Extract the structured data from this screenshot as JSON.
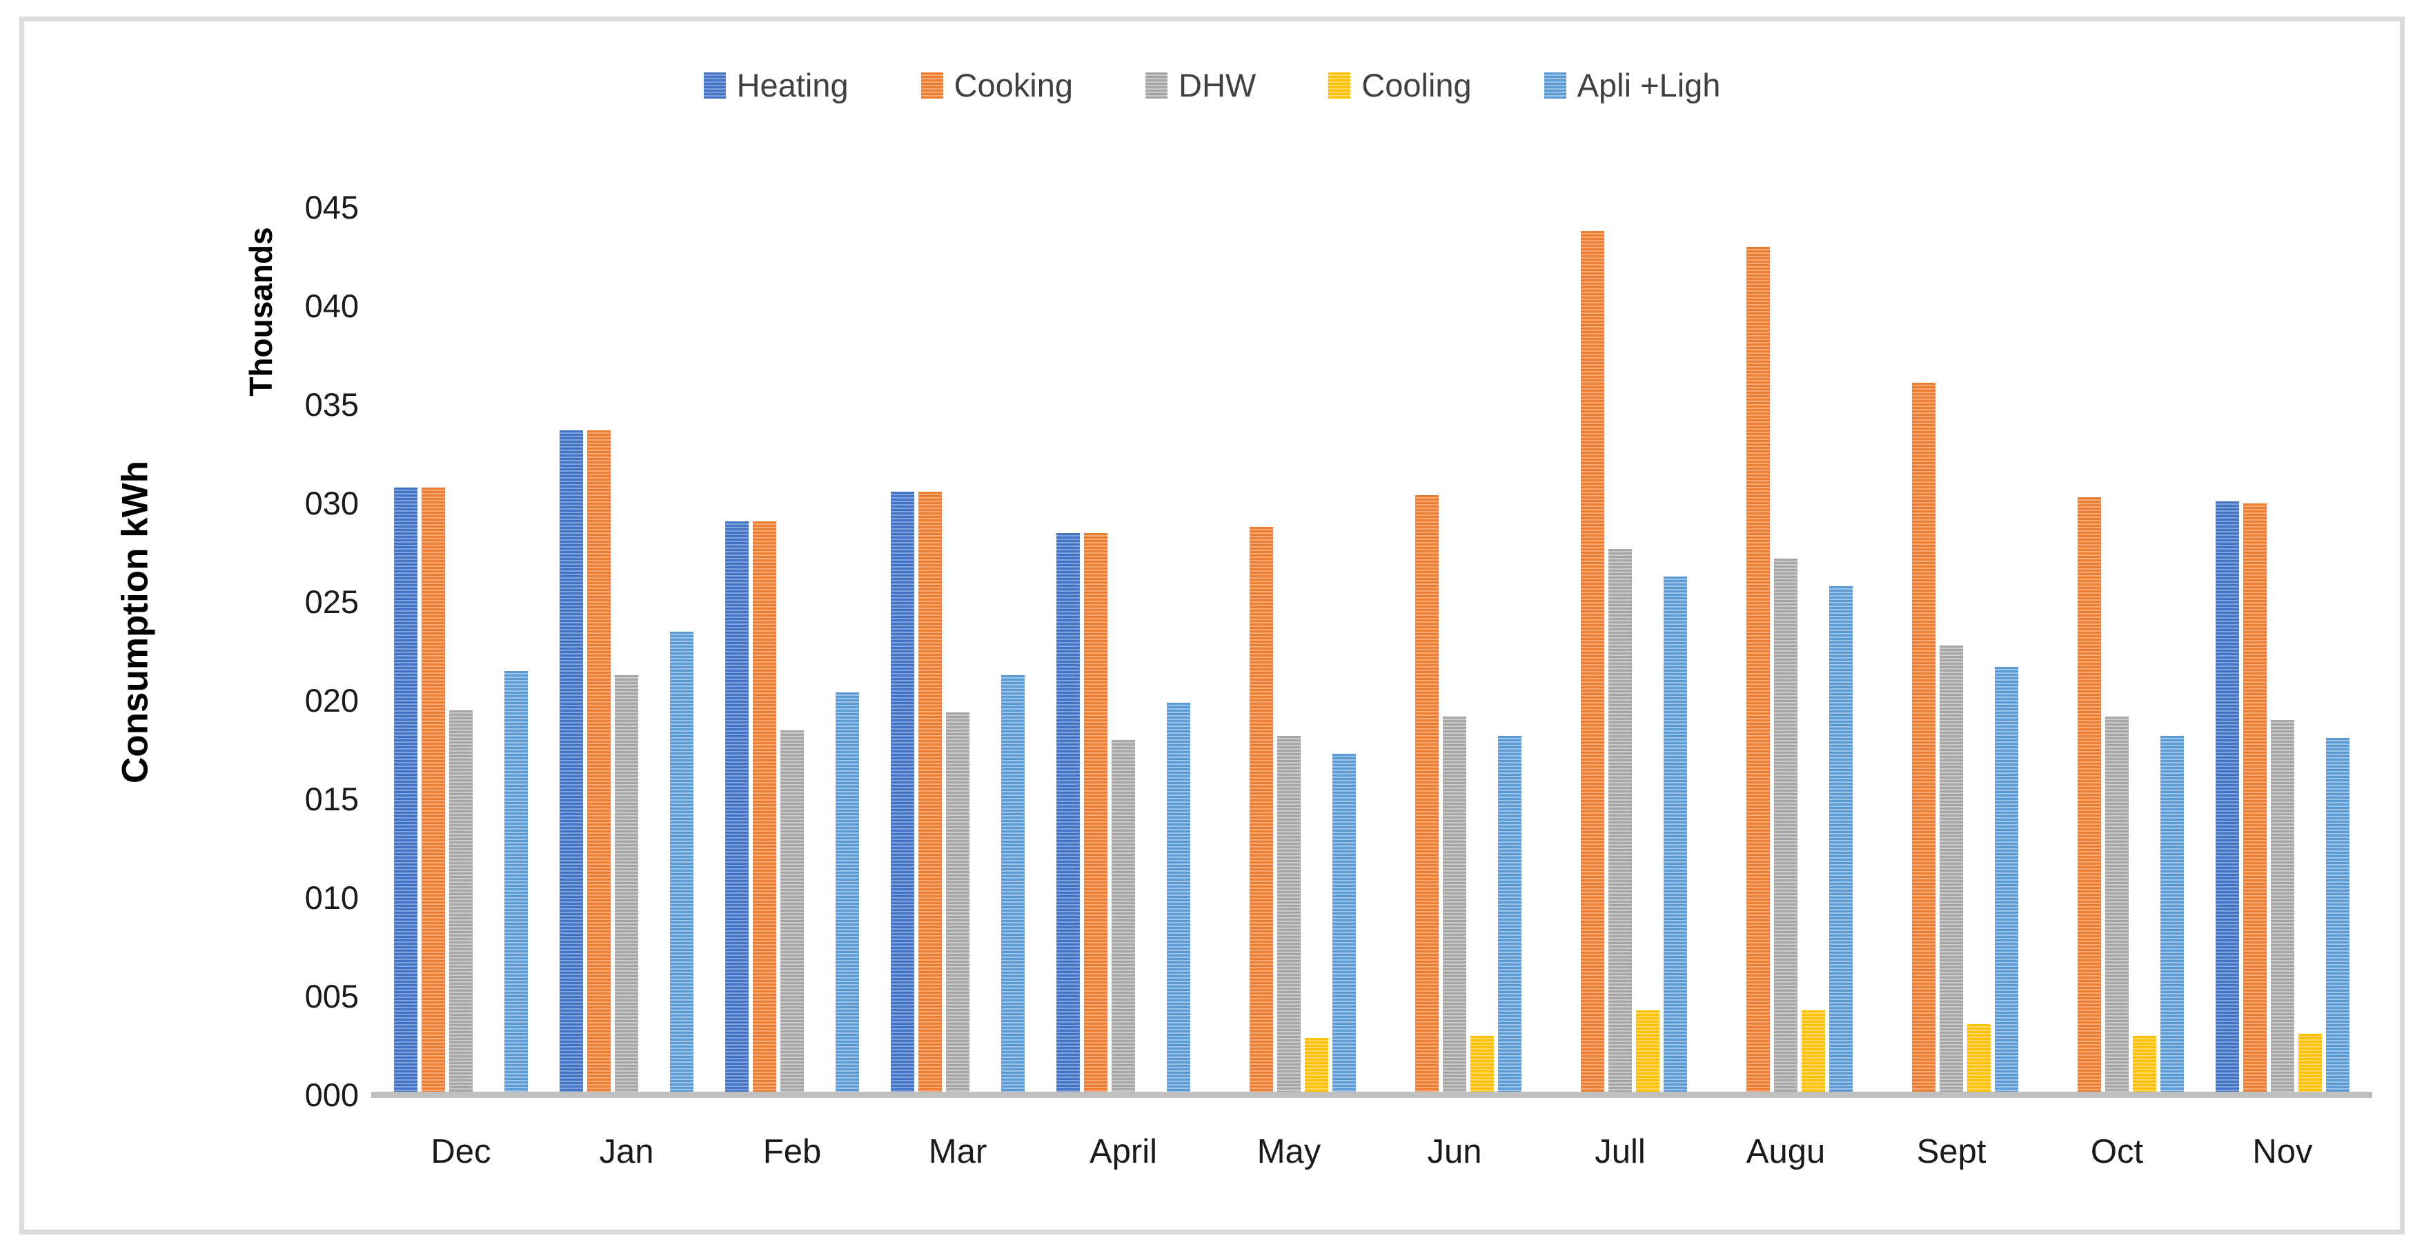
{
  "frame": {
    "border_color": "#dcdcdc",
    "background": "#ffffff"
  },
  "axis_titles": {
    "primary": "Consumption kWh",
    "secondary": "Thousands"
  },
  "chart_data": {
    "type": "bar",
    "title": "",
    "categories": [
      "Dec",
      "Jan",
      "Feb",
      "Mar",
      "April",
      "May",
      "Jun",
      "Jull",
      "Augu",
      "Sept",
      "Oct",
      "Nov"
    ],
    "series": [
      {
        "name": "Heating",
        "color": "#4472C4",
        "stripe_color": "#7FA3DC",
        "values": [
          30.7,
          33.6,
          29.0,
          30.5,
          28.4,
          0,
          0,
          0,
          0,
          0,
          0,
          30.0
        ]
      },
      {
        "name": "Cooking",
        "color": "#ED7D31",
        "stripe_color": "#F4A877",
        "values": [
          30.7,
          33.6,
          29.0,
          30.5,
          28.4,
          28.7,
          30.3,
          43.7,
          42.9,
          36.0,
          30.2,
          29.9
        ]
      },
      {
        "name": "DHW",
        "color": "#A6A6A6",
        "stripe_color": "#C9C9C9",
        "values": [
          19.4,
          21.2,
          18.4,
          19.3,
          17.9,
          18.1,
          19.1,
          27.6,
          27.1,
          22.7,
          19.1,
          18.9
        ]
      },
      {
        "name": "Cooling",
        "color": "#FFC000",
        "stripe_color": "#FFD966",
        "values": [
          0,
          0,
          0,
          0,
          0,
          2.8,
          2.9,
          4.2,
          4.2,
          3.5,
          2.9,
          3.0
        ]
      },
      {
        "name": "Apli +Ligh",
        "color": "#5B9BD5",
        "stripe_color": "#9DC3E6",
        "values": [
          21.4,
          23.4,
          20.3,
          21.2,
          19.8,
          17.2,
          18.1,
          26.2,
          25.7,
          21.6,
          18.1,
          18.0
        ]
      }
    ],
    "ylabel": "Consumption kWh",
    "y_units_label": "Thousands",
    "ylim": [
      0,
      45
    ],
    "ytick_step": 5,
    "ytick_labels": [
      "000",
      "005",
      "010",
      "015",
      "020",
      "025",
      "030",
      "035",
      "040",
      "045"
    ],
    "grid": false,
    "legend_position": "top",
    "axis_line_color": "#bfbfbf",
    "tick_text_color": "#1a1a1a",
    "legend_text_color": "#404040"
  }
}
